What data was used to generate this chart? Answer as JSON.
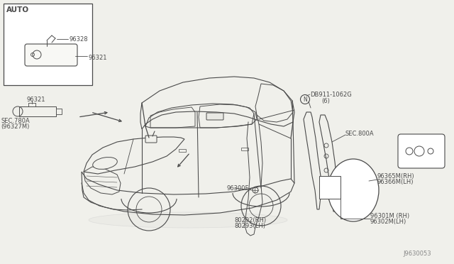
{
  "bg_color": "#f0f0eb",
  "lc": "#4a4a4a",
  "lc_light": "#888888",
  "diagram_code": "J9630053",
  "labels": {
    "auto_box": "AUTO",
    "p1": "96328",
    "p2": "96321",
    "p3": "96321",
    "p4": "SEC.780A",
    "p5": "(96327M)",
    "p6": "96300F",
    "p7": "80292(RH)",
    "p8": "80293(LH)",
    "p9": "DB911-1062G",
    "p10": "(6)",
    "p11": "SEC.800A",
    "p12": "96365M(RH)",
    "p13": "96366M(LH)",
    "p14": "96301M (RH)",
    "p15": "96302M(LH)"
  },
  "fs": 6.0,
  "fm": 7.5
}
